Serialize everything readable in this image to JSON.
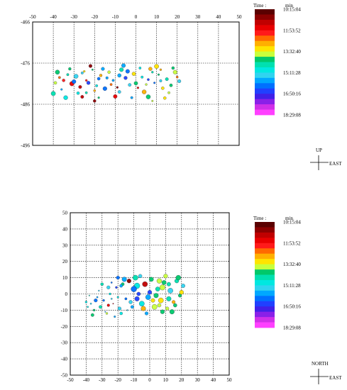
{
  "chart_data": [
    {
      "type": "scatter",
      "name": "side-view",
      "xlim": [
        -50,
        50
      ],
      "ylim": [
        -496,
        -466
      ],
      "x_ticks": [
        "-50",
        "-40",
        "-30",
        "-20",
        "-10",
        "0",
        "10",
        "20",
        "30",
        "40",
        "50"
      ],
      "y_ticks": [
        "-466",
        "-476",
        "-486",
        "-496"
      ],
      "dashed_grid_x": [
        -40,
        -30,
        -20,
        -10,
        0,
        10,
        20,
        30,
        40
      ],
      "dashed_grid_y": [
        -476,
        -486
      ],
      "grid": true,
      "points": [
        [
          -37,
          -479.5,
          5
        ],
        [
          -35,
          -480.2,
          4
        ],
        [
          -33,
          -478.8,
          10
        ],
        [
          -31,
          -481,
          3
        ],
        [
          -29,
          -479.2,
          12
        ],
        [
          -27,
          -481.8,
          2
        ],
        [
          -25,
          -478,
          7
        ],
        [
          -23,
          -480.8,
          15
        ],
        [
          -21,
          -477.6,
          9
        ],
        [
          -19,
          -481.5,
          11
        ],
        [
          -17,
          -479,
          6
        ],
        [
          -15,
          -482.2,
          14
        ],
        [
          -13,
          -478.2,
          8
        ],
        [
          -11,
          -480.2,
          13
        ],
        [
          -9,
          -481.9,
          1
        ],
        [
          -7,
          -477.6,
          10
        ],
        [
          -5,
          -479.6,
          15
        ],
        [
          -3,
          -481.3,
          12
        ],
        [
          -1,
          -478.6,
          7
        ],
        [
          1,
          -482,
          3
        ],
        [
          3,
          -479.4,
          11
        ],
        [
          5,
          -481.2,
          8
        ],
        [
          7,
          -477.4,
          6
        ],
        [
          9,
          -480.8,
          14
        ],
        [
          11,
          -478.8,
          9
        ],
        [
          13,
          -482.1,
          7
        ],
        [
          15,
          -479.9,
          10
        ],
        [
          17,
          -481.4,
          9
        ],
        [
          19,
          -478.2,
          8
        ],
        [
          21,
          -480.4,
          12
        ],
        [
          -36,
          -482.4,
          13
        ],
        [
          -32,
          -477.4,
          9
        ],
        [
          -28,
          -483.3,
          11
        ],
        [
          -24,
          -480.2,
          4
        ],
        [
          -20,
          -482.7,
          6
        ],
        [
          -16,
          -477.4,
          13
        ],
        [
          -12,
          -481.2,
          5
        ],
        [
          -8,
          -483,
          12
        ],
        [
          -4,
          -478,
          14
        ],
        [
          0,
          -480.9,
          9
        ],
        [
          4,
          -483,
          6
        ],
        [
          8,
          -478.2,
          10
        ],
        [
          12,
          -480.3,
          12
        ],
        [
          16,
          -483.2,
          8
        ],
        [
          20,
          -479.4,
          5
        ],
        [
          -34,
          -484.4,
          11
        ],
        [
          -26,
          -484.2,
          2
        ],
        [
          -18,
          -484.4,
          9
        ],
        [
          -10,
          -484.1,
          3
        ],
        [
          -2,
          -484.4,
          13
        ],
        [
          6,
          -484.2,
          9
        ],
        [
          14,
          -484.5,
          7
        ],
        [
          -39,
          -480.8,
          8
        ],
        [
          -22,
          -476.7,
          1
        ],
        [
          -6,
          -476.6,
          13
        ],
        [
          10,
          -476.8,
          7
        ],
        [
          18,
          -477.2,
          9
        ],
        [
          -30,
          -480.5,
          14
        ],
        [
          -14,
          -479.6,
          13
        ],
        [
          2,
          -477.2,
          11
        ],
        [
          -38,
          -478.2,
          9
        ],
        [
          -26,
          -478.4,
          12
        ],
        [
          -18,
          -479.8,
          14
        ],
        [
          -8,
          -479,
          13
        ],
        [
          6,
          -480,
          15
        ],
        [
          12,
          -477.6,
          6
        ],
        [
          -24,
          -483.2,
          10
        ],
        [
          -20,
          -485.2,
          1
        ],
        [
          8,
          -485.2,
          8
        ],
        [
          -40,
          -483.4,
          10
        ]
      ]
    },
    {
      "type": "scatter",
      "name": "plan-view",
      "xlim": [
        -50,
        50
      ],
      "ylim": [
        -50,
        50
      ],
      "x_ticks": [
        "-50",
        "-40",
        "-30",
        "-20",
        "-10",
        "0",
        "10",
        "20",
        "30",
        "40",
        "50"
      ],
      "y_ticks": [
        "50",
        "40",
        "30",
        "20",
        "10",
        "0",
        "-10",
        "-20",
        "-30",
        "-40",
        "-50"
      ],
      "dashed_grid_x": [
        -40,
        -30,
        -20,
        -10,
        0,
        10,
        20,
        30,
        40
      ],
      "dashed_grid_y": [
        40,
        30,
        20,
        10,
        0,
        -10,
        -20,
        -30,
        -40
      ],
      "grid": true,
      "points": [
        [
          -37,
          -6,
          12
        ],
        [
          -35,
          -10,
          9
        ],
        [
          -33,
          -2,
          13
        ],
        [
          -31,
          -8,
          10
        ],
        [
          -29,
          -4,
          14
        ],
        [
          -27,
          -12,
          8
        ],
        [
          -25,
          0,
          11
        ],
        [
          -23,
          -6,
          2
        ],
        [
          -21,
          4,
          15
        ],
        [
          -19,
          -9,
          12
        ],
        [
          -17,
          6,
          9
        ],
        [
          -15,
          -3,
          14
        ],
        [
          -13,
          8,
          1
        ],
        [
          -11,
          -8,
          13
        ],
        [
          -9,
          10,
          10
        ],
        [
          -7,
          0,
          15
        ],
        [
          -5,
          -6,
          11
        ],
        [
          -3,
          6,
          2
        ],
        [
          -1,
          -2,
          13
        ],
        [
          1,
          9,
          9
        ],
        [
          3,
          -8,
          8
        ],
        [
          5,
          3,
          10
        ],
        [
          7,
          -4,
          7
        ],
        [
          9,
          7,
          9
        ],
        [
          11,
          -9,
          8
        ],
        [
          13,
          2,
          12
        ],
        [
          15,
          -5,
          6
        ],
        [
          17,
          8,
          10
        ],
        [
          19,
          -1,
          9
        ],
        [
          21,
          5,
          12
        ],
        [
          -36,
          -13,
          9
        ],
        [
          -32,
          2,
          12
        ],
        [
          -28,
          -11,
          13
        ],
        [
          -24,
          7,
          14
        ],
        [
          -20,
          -2,
          11
        ],
        [
          -16,
          9,
          13
        ],
        [
          -12,
          -5,
          12
        ],
        [
          -8,
          5,
          11
        ],
        [
          -4,
          -9,
          6
        ],
        [
          0,
          1,
          15
        ],
        [
          4,
          -1,
          9
        ],
        [
          8,
          4,
          8
        ],
        [
          12,
          -3,
          10
        ],
        [
          16,
          -7,
          9
        ],
        [
          20,
          1,
          7
        ],
        [
          -34,
          -4,
          14
        ],
        [
          -26,
          4,
          12
        ],
        [
          -18,
          -12,
          11
        ],
        [
          -10,
          3,
          14
        ],
        [
          -2,
          -12,
          13
        ],
        [
          6,
          8,
          8
        ],
        [
          14,
          -11,
          9
        ],
        [
          -39,
          -8,
          11
        ],
        [
          -22,
          -14,
          13
        ],
        [
          -6,
          11,
          12
        ],
        [
          10,
          11,
          8
        ],
        [
          18,
          10,
          9
        ],
        [
          -30,
          6,
          10
        ],
        [
          -14,
          -10,
          12
        ],
        [
          2,
          -4,
          7
        ],
        [
          -38,
          -1,
          10
        ],
        [
          -26,
          -7,
          3
        ],
        [
          -18,
          5,
          13
        ],
        [
          -8,
          -3,
          15
        ],
        [
          6,
          -7,
          8
        ],
        [
          12,
          6,
          10
        ],
        [
          -24,
          -3,
          12
        ],
        [
          -20,
          10,
          14
        ],
        [
          8,
          -11,
          9
        ],
        [
          -40,
          -5,
          11
        ]
      ]
    }
  ],
  "colorbar": {
    "time_label": "Time :",
    "unit_label": "min",
    "tick_labels": [
      "10:15:04",
      "11:53:52",
      "13:32:40",
      "15:11:28",
      "16:50:16",
      "18:29:08"
    ],
    "colors": [
      "#5a0000",
      "#8b0000",
      "#c00000",
      "#e80000",
      "#ff1a1a",
      "#ff6a00",
      "#ffb000",
      "#ffe400",
      "#c8ff3c",
      "#00c86a",
      "#00e0b0",
      "#00e8e0",
      "#30d4f0",
      "#00a8ff",
      "#0070ff",
      "#2040ff",
      "#4020e8",
      "#8a20e8",
      "#d030e8",
      "#ff40ff"
    ]
  },
  "compass_side": {
    "up": "UP",
    "east": "EAST"
  },
  "compass_plan": {
    "north": "NORTH",
    "east": "EAST"
  }
}
